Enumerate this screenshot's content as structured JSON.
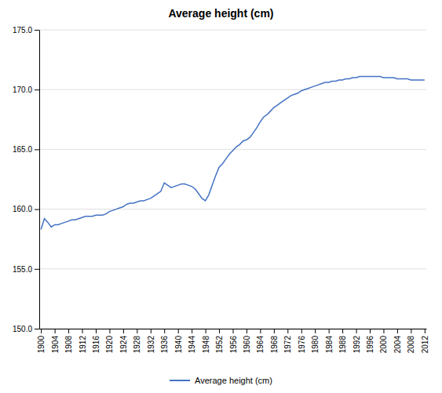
{
  "chart_data": {
    "type": "line",
    "title": "Average height (cm)",
    "x": [
      1900,
      1901,
      1902,
      1903,
      1904,
      1905,
      1906,
      1907,
      1908,
      1909,
      1910,
      1911,
      1912,
      1913,
      1914,
      1915,
      1916,
      1917,
      1918,
      1919,
      1920,
      1921,
      1922,
      1923,
      1924,
      1925,
      1926,
      1927,
      1928,
      1929,
      1930,
      1931,
      1932,
      1933,
      1934,
      1935,
      1936,
      1937,
      1938,
      1939,
      1940,
      1941,
      1942,
      1943,
      1944,
      1945,
      1946,
      1947,
      1948,
      1949,
      1950,
      1951,
      1952,
      1953,
      1954,
      1955,
      1956,
      1957,
      1958,
      1959,
      1960,
      1961,
      1962,
      1963,
      1964,
      1965,
      1966,
      1967,
      1968,
      1969,
      1970,
      1971,
      1972,
      1973,
      1974,
      1975,
      1976,
      1977,
      1978,
      1979,
      1980,
      1981,
      1982,
      1983,
      1984,
      1985,
      1986,
      1987,
      1988,
      1989,
      1990,
      1991,
      1992,
      1993,
      1994,
      1995,
      1996,
      1997,
      1998,
      1999,
      2000,
      2001,
      2002,
      2003,
      2004,
      2005,
      2006,
      2007,
      2008,
      2009,
      2010,
      2011,
      2012
    ],
    "series": [
      {
        "name": "Average height (cm)",
        "color": "#4472C4",
        "values": [
          158.3,
          159.2,
          158.9,
          158.5,
          158.7,
          158.7,
          158.8,
          158.9,
          159.0,
          159.1,
          159.1,
          159.2,
          159.3,
          159.4,
          159.4,
          159.4,
          159.5,
          159.5,
          159.5,
          159.6,
          159.8,
          159.9,
          160.0,
          160.1,
          160.2,
          160.4,
          160.5,
          160.5,
          160.6,
          160.7,
          160.7,
          160.8,
          160.9,
          161.1,
          161.3,
          161.5,
          162.2,
          162.0,
          161.8,
          161.9,
          162.0,
          162.1,
          162.1,
          162.0,
          161.9,
          161.7,
          161.3,
          160.9,
          160.7,
          161.2,
          162.0,
          162.8,
          163.5,
          163.8,
          164.2,
          164.6,
          164.9,
          165.2,
          165.4,
          165.7,
          165.8,
          166.0,
          166.4,
          166.8,
          167.3,
          167.7,
          167.9,
          168.2,
          168.5,
          168.7,
          168.9,
          169.1,
          169.3,
          169.5,
          169.6,
          169.7,
          169.9,
          170.0,
          170.1,
          170.2,
          170.3,
          170.4,
          170.5,
          170.6,
          170.6,
          170.7,
          170.7,
          170.8,
          170.8,
          170.9,
          170.9,
          171.0,
          171.0,
          171.1,
          171.1,
          171.1,
          171.1,
          171.1,
          171.1,
          171.1,
          171.0,
          171.0,
          171.0,
          171.0,
          170.9,
          170.9,
          170.9,
          170.9,
          170.8,
          170.8,
          170.8,
          170.8,
          170.8
        ]
      }
    ],
    "xlim": [
      1899.5,
      2012.5
    ],
    "xticks": [
      1900,
      1904,
      1908,
      1912,
      1916,
      1920,
      1924,
      1928,
      1932,
      1936,
      1940,
      1944,
      1948,
      1952,
      1956,
      1960,
      1964,
      1968,
      1972,
      1976,
      1980,
      1984,
      1988,
      1992,
      1996,
      2000,
      2004,
      2008,
      2012
    ],
    "ylim": [
      150.0,
      175.0
    ],
    "yticks": [
      {
        "value": 150,
        "label": "150.0"
      },
      {
        "value": 155,
        "label": "155.0"
      },
      {
        "value": 160,
        "label": "160.0"
      },
      {
        "value": 165,
        "label": "165.0"
      },
      {
        "value": 170,
        "label": "170.0"
      },
      {
        "value": 175,
        "label": "175.0"
      }
    ],
    "grid": true,
    "legend": "bottom"
  }
}
